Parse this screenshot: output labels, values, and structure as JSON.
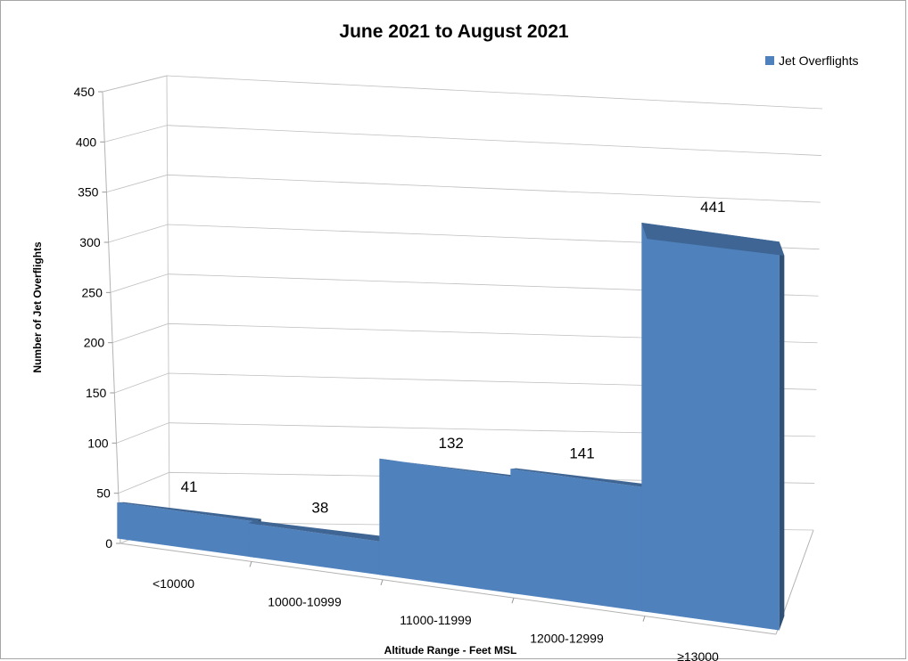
{
  "chart_data": {
    "type": "bar",
    "style": "3d-column",
    "title": "June 2021 to August 2021",
    "xlabel": "Altitude Range - Feet MSL",
    "ylabel": "Number of Jet Overflights",
    "ylim": [
      0,
      450
    ],
    "ytick_step": 50,
    "grid": true,
    "legend_position": "top-right",
    "categories": [
      "<10000",
      "10000-10999",
      "11000-11999",
      "12000-12999",
      "≥13000"
    ],
    "series": [
      {
        "name": "Jet Overflights",
        "color": "#4f81bd",
        "values": [
          41,
          38,
          132,
          141,
          441
        ]
      }
    ]
  }
}
